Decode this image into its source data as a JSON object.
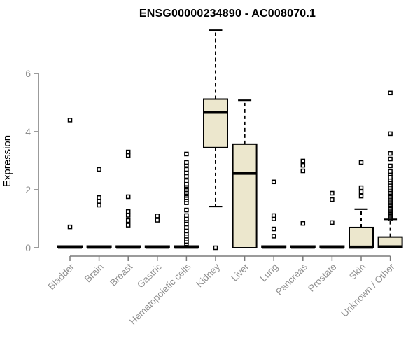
{
  "chart_data": {
    "type": "boxplot",
    "title": "ENSG00000234890 - AC008070.1",
    "ylabel": "Expression",
    "xlabel": "",
    "yticks": [
      0,
      2,
      4,
      6
    ],
    "ylim": [
      -0.2,
      7.6
    ],
    "grid": false,
    "legend": "none",
    "categories": [
      "Bladder",
      "Brain",
      "Breast",
      "Gastric",
      "Hematopoietic cells",
      "Kidney",
      "Liver",
      "Lung",
      "Pancreas",
      "Prostate",
      "Skin",
      "Unknown / Other"
    ],
    "style": {
      "box_fill": "#ECE7CD",
      "box_stroke": "#000000",
      "axis_color": "#7a7a7a",
      "label_color": "#909090",
      "title_color": "#000000"
    },
    "series": [
      {
        "category": "Bladder",
        "whisker_low": 0,
        "q1": 0,
        "median": 0.02,
        "q3": 0.06,
        "whisker_high": 0.06,
        "outliers": [
          0.72,
          4.4
        ]
      },
      {
        "category": "Brain",
        "whisker_low": 0,
        "q1": 0,
        "median": 0.02,
        "q3": 0.06,
        "whisker_high": 0.06,
        "outliers": [
          1.47,
          1.6,
          1.73,
          2.7
        ]
      },
      {
        "category": "Breast",
        "whisker_low": 0,
        "q1": 0,
        "median": 0.02,
        "q3": 0.06,
        "whisker_high": 0.06,
        "outliers": [
          0.78,
          0.94,
          1.12,
          1.25,
          1.76,
          3.18,
          3.3
        ]
      },
      {
        "category": "Gastric",
        "whisker_low": 0,
        "q1": 0,
        "median": 0.02,
        "q3": 0.06,
        "whisker_high": 0.06,
        "outliers": [
          0.95,
          1.1
        ]
      },
      {
        "category": "Hematopoietic cells",
        "whisker_low": 0,
        "q1": 0,
        "median": 0.02,
        "q3": 0.06,
        "whisker_high": 0.06,
        "outliers": [
          0.14,
          0.22,
          0.3,
          0.4,
          0.5,
          0.58,
          0.7,
          0.82,
          0.94,
          1.0,
          1.11,
          1.3,
          1.55,
          1.65,
          1.73,
          1.8,
          1.85,
          1.9,
          1.95,
          2.0,
          2.05,
          2.1,
          2.15,
          2.2,
          2.31,
          2.46,
          2.58,
          2.7,
          2.85,
          2.94,
          3.23
        ]
      },
      {
        "category": "Kidney",
        "whisker_low": 1.42,
        "q1": 3.45,
        "median": 4.67,
        "q3": 5.12,
        "whisker_high": 7.49,
        "outliers": [
          0
        ]
      },
      {
        "category": "Liver",
        "whisker_low": 0,
        "q1": 0,
        "median": 2.57,
        "q3": 3.57,
        "whisker_high": 5.08,
        "outliers": []
      },
      {
        "category": "Lung",
        "whisker_low": 0,
        "q1": 0,
        "median": 0.02,
        "q3": 0.06,
        "whisker_high": 0.06,
        "outliers": [
          0.4,
          0.65,
          1.0,
          1.11,
          2.27
        ]
      },
      {
        "category": "Pancreas",
        "whisker_low": 0,
        "q1": 0,
        "median": 0.02,
        "q3": 0.06,
        "whisker_high": 0.06,
        "outliers": [
          0.84,
          2.65,
          2.84,
          2.99
        ]
      },
      {
        "category": "Prostate",
        "whisker_low": 0,
        "q1": 0,
        "median": 0.02,
        "q3": 0.06,
        "whisker_high": 0.06,
        "outliers": [
          0.87,
          1.66,
          1.88
        ]
      },
      {
        "category": "Skin",
        "whisker_low": 0,
        "q1": 0,
        "median": 0.02,
        "q3": 0.7,
        "whisker_high": 1.33,
        "outliers": [
          1.78,
          1.93,
          2.07,
          2.94
        ]
      },
      {
        "category": "Unknown / Other",
        "whisker_low": 0,
        "q1": 0,
        "median": 0.03,
        "q3": 0.37,
        "whisker_high": 0.98,
        "outliers": [
          1.0,
          1.04,
          1.08,
          1.12,
          1.16,
          1.2,
          1.24,
          1.28,
          1.32,
          1.36,
          1.4,
          1.45,
          1.5,
          1.55,
          1.6,
          1.65,
          1.7,
          1.75,
          1.8,
          1.85,
          1.9,
          1.95,
          2.0,
          2.06,
          2.12,
          2.18,
          2.25,
          2.34,
          2.43,
          2.55,
          2.63,
          2.82,
          3.06,
          3.25,
          3.93,
          5.33
        ]
      }
    ]
  }
}
